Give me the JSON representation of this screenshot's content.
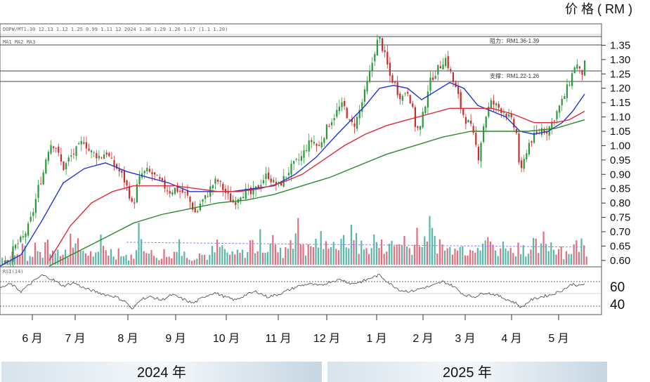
{
  "chart_data": {
    "type": "candlestick",
    "y_axis_label": "价 格 ( RM )",
    "price_ticks": [
      "1.35",
      "1.30",
      "1.25",
      "1.20",
      "1.15",
      "1.10",
      "1.05",
      "1.00",
      "0.95",
      "0.90",
      "0.85",
      "0.80",
      "0.75",
      "0.70",
      "0.65",
      "0.60"
    ],
    "ylim": [
      0.585,
      1.395
    ],
    "rsi_ticks": [
      "60",
      "40"
    ],
    "rsi_lim": [
      35,
      75
    ],
    "months": [
      "6 月",
      "7 月",
      "8 月",
      "9 月",
      "10 月",
      "11 月",
      "12 月",
      "1 月",
      "2 月",
      "3 月",
      "4 月",
      "5 月"
    ],
    "years": [
      "2024 年",
      "2025 年"
    ],
    "resistance": {
      "label": "阻力：RM1.36-1.39",
      "levels": [
        1.36,
        1.39
      ]
    },
    "support": {
      "label": "支撑：RM1.22-1.26",
      "levels": [
        1.22,
        1.26
      ]
    },
    "price_path": [
      [
        0,
        0.58
      ],
      [
        6,
        0.61
      ],
      [
        12,
        0.6
      ],
      [
        18,
        0.64
      ],
      [
        25,
        0.66
      ],
      [
        32,
        0.68
      ],
      [
        40,
        0.72
      ],
      [
        47,
        0.78
      ],
      [
        54,
        0.86
      ],
      [
        60,
        0.9
      ],
      [
        66,
        0.98
      ],
      [
        72,
        1.01
      ],
      [
        78,
        1.0
      ],
      [
        84,
        0.95
      ],
      [
        90,
        0.92
      ],
      [
        96,
        0.95
      ],
      [
        102,
        0.97
      ],
      [
        110,
        0.99
      ],
      [
        118,
        1.02
      ],
      [
        126,
        0.98
      ],
      [
        134,
        0.97
      ],
      [
        142,
        0.96
      ],
      [
        150,
        0.98
      ],
      [
        158,
        0.94
      ],
      [
        166,
        0.92
      ],
      [
        174,
        0.89
      ],
      [
        182,
        0.84
      ],
      [
        188,
        0.78
      ],
      [
        194,
        0.86
      ],
      [
        200,
        0.9
      ],
      [
        208,
        0.91
      ],
      [
        216,
        0.9
      ],
      [
        224,
        0.88
      ],
      [
        232,
        0.86
      ],
      [
        240,
        0.84
      ],
      [
        248,
        0.85
      ],
      [
        256,
        0.84
      ],
      [
        264,
        0.83
      ],
      [
        272,
        0.79
      ],
      [
        278,
        0.76
      ],
      [
        284,
        0.8
      ],
      [
        292,
        0.82
      ],
      [
        300,
        0.86
      ],
      [
        308,
        0.88
      ],
      [
        316,
        0.85
      ],
      [
        324,
        0.82
      ],
      [
        332,
        0.8
      ],
      [
        340,
        0.83
      ],
      [
        348,
        0.84
      ],
      [
        356,
        0.83
      ],
      [
        364,
        0.85
      ],
      [
        372,
        0.88
      ],
      [
        380,
        0.9
      ],
      [
        388,
        0.87
      ],
      [
        396,
        0.86
      ],
      [
        404,
        0.89
      ],
      [
        412,
        0.92
      ],
      [
        420,
        0.94
      ],
      [
        428,
        0.96
      ],
      [
        436,
        1.0
      ],
      [
        444,
        1.02
      ],
      [
        452,
        0.99
      ],
      [
        460,
        1.04
      ],
      [
        468,
        1.08
      ],
      [
        476,
        1.11
      ],
      [
        484,
        1.14
      ],
      [
        490,
        1.13
      ],
      [
        496,
        1.08
      ],
      [
        502,
        1.07
      ],
      [
        508,
        1.1
      ],
      [
        514,
        1.15
      ],
      [
        520,
        1.2
      ],
      [
        526,
        1.26
      ],
      [
        532,
        1.33
      ],
      [
        538,
        1.38
      ],
      [
        542,
        1.35
      ],
      [
        548,
        1.3
      ],
      [
        554,
        1.24
      ],
      [
        560,
        1.22
      ],
      [
        566,
        1.18
      ],
      [
        572,
        1.17
      ],
      [
        578,
        1.2
      ],
      [
        584,
        1.15
      ],
      [
        590,
        1.07
      ],
      [
        596,
        1.05
      ],
      [
        602,
        1.12
      ],
      [
        608,
        1.2
      ],
      [
        614,
        1.24
      ],
      [
        620,
        1.26
      ],
      [
        626,
        1.28
      ],
      [
        632,
        1.31
      ],
      [
        638,
        1.27
      ],
      [
        644,
        1.22
      ],
      [
        650,
        1.18
      ],
      [
        656,
        1.12
      ],
      [
        662,
        1.09
      ],
      [
        668,
        1.07
      ],
      [
        674,
        1.02
      ],
      [
        680,
        0.96
      ],
      [
        686,
        1.06
      ],
      [
        692,
        1.12
      ],
      [
        698,
        1.15
      ],
      [
        704,
        1.14
      ],
      [
        710,
        1.13
      ],
      [
        716,
        1.12
      ],
      [
        722,
        1.1
      ],
      [
        728,
        1.08
      ],
      [
        734,
        1.04
      ],
      [
        738,
        0.93
      ],
      [
        742,
        0.9
      ],
      [
        746,
        0.97
      ],
      [
        752,
        1.01
      ],
      [
        758,
        1.03
      ],
      [
        764,
        1.04
      ],
      [
        770,
        1.06
      ],
      [
        776,
        1.05
      ],
      [
        782,
        1.07
      ],
      [
        788,
        1.1
      ],
      [
        794,
        1.13
      ],
      [
        800,
        1.16
      ],
      [
        806,
        1.2
      ],
      [
        812,
        1.24
      ],
      [
        818,
        1.29
      ],
      [
        822,
        1.27
      ],
      [
        826,
        1.24
      ],
      [
        830,
        1.28
      ],
      [
        834,
        1.29
      ]
    ],
    "ma_series": [
      {
        "color": "#1f35d6",
        "points": [
          [
            0,
            0.58
          ],
          [
            30,
            0.62
          ],
          [
            60,
            0.74
          ],
          [
            90,
            0.87
          ],
          [
            120,
            0.92
          ],
          [
            150,
            0.94
          ],
          [
            180,
            0.91
          ],
          [
            210,
            0.89
          ],
          [
            240,
            0.87
          ],
          [
            270,
            0.84
          ],
          [
            300,
            0.84
          ],
          [
            330,
            0.84
          ],
          [
            360,
            0.85
          ],
          [
            390,
            0.86
          ],
          [
            420,
            0.9
          ],
          [
            450,
            0.96
          ],
          [
            480,
            1.04
          ],
          [
            500,
            1.09
          ],
          [
            520,
            1.14
          ],
          [
            540,
            1.2
          ],
          [
            560,
            1.21
          ],
          [
            580,
            1.2
          ],
          [
            600,
            1.16
          ],
          [
            620,
            1.19
          ],
          [
            640,
            1.22
          ],
          [
            660,
            1.2
          ],
          [
            680,
            1.14
          ],
          [
            700,
            1.12
          ],
          [
            720,
            1.1
          ],
          [
            740,
            1.05
          ],
          [
            760,
            1.04
          ],
          [
            780,
            1.05
          ],
          [
            800,
            1.08
          ],
          [
            815,
            1.12
          ],
          [
            832,
            1.18
          ]
        ]
      },
      {
        "color": "#e0293a",
        "points": [
          [
            70,
            0.6
          ],
          [
            100,
            0.72
          ],
          [
            130,
            0.8
          ],
          [
            160,
            0.84
          ],
          [
            190,
            0.86
          ],
          [
            220,
            0.86
          ],
          [
            250,
            0.86
          ],
          [
            280,
            0.85
          ],
          [
            310,
            0.84
          ],
          [
            340,
            0.84
          ],
          [
            370,
            0.85
          ],
          [
            400,
            0.87
          ],
          [
            430,
            0.9
          ],
          [
            460,
            0.95
          ],
          [
            490,
            1.0
          ],
          [
            520,
            1.04
          ],
          [
            550,
            1.07
          ],
          [
            580,
            1.09
          ],
          [
            610,
            1.11
          ],
          [
            640,
            1.13
          ],
          [
            670,
            1.13
          ],
          [
            700,
            1.13
          ],
          [
            730,
            1.11
          ],
          [
            760,
            1.08
          ],
          [
            790,
            1.08
          ],
          [
            810,
            1.09
          ],
          [
            832,
            1.12
          ]
        ]
      },
      {
        "color": "#2a8a2a",
        "points": [
          [
            70,
            0.58
          ],
          [
            110,
            0.63
          ],
          [
            150,
            0.68
          ],
          [
            190,
            0.73
          ],
          [
            230,
            0.76
          ],
          [
            270,
            0.78
          ],
          [
            310,
            0.8
          ],
          [
            350,
            0.81
          ],
          [
            390,
            0.83
          ],
          [
            430,
            0.86
          ],
          [
            470,
            0.89
          ],
          [
            510,
            0.93
          ],
          [
            550,
            0.97
          ],
          [
            590,
            1.0
          ],
          [
            630,
            1.03
          ],
          [
            670,
            1.05
          ],
          [
            710,
            1.05
          ],
          [
            750,
            1.05
          ],
          [
            790,
            1.06
          ],
          [
            832,
            1.09
          ]
        ]
      }
    ],
    "volume_profile": [
      12,
      8,
      20,
      15,
      30,
      10,
      22,
      25,
      18,
      40,
      28,
      35,
      15,
      20,
      55,
      30,
      25,
      20,
      18,
      15,
      40,
      30,
      22,
      18,
      25,
      15,
      12,
      20,
      60,
      35,
      18,
      15,
      14,
      20,
      12,
      22,
      45,
      18,
      15,
      12,
      20,
      16,
      14,
      22,
      30,
      25,
      18,
      15,
      20,
      18,
      22,
      35,
      28,
      40,
      30,
      45,
      25,
      20,
      30,
      50,
      55,
      38,
      25,
      30,
      35,
      40,
      30,
      48,
      35,
      30,
      38,
      45,
      50,
      30,
      25,
      32,
      40,
      30,
      25,
      42,
      30,
      35,
      45,
      28,
      35,
      55,
      32,
      60,
      45,
      38,
      30,
      25,
      35,
      45,
      30,
      28,
      40,
      35,
      25,
      48,
      30,
      25,
      30,
      40,
      22,
      30,
      35,
      28,
      20,
      30,
      25,
      40,
      35,
      30,
      30,
      20,
      25,
      30,
      35,
      28
    ],
    "rsi_path": [
      [
        0,
        58
      ],
      [
        15,
        62
      ],
      [
        30,
        55
      ],
      [
        45,
        63
      ],
      [
        60,
        70
      ],
      [
        75,
        66
      ],
      [
        90,
        60
      ],
      [
        105,
        63
      ],
      [
        120,
        58
      ],
      [
        135,
        55
      ],
      [
        150,
        52
      ],
      [
        165,
        50
      ],
      [
        180,
        45
      ],
      [
        188,
        38
      ],
      [
        200,
        48
      ],
      [
        215,
        50
      ],
      [
        230,
        47
      ],
      [
        245,
        52
      ],
      [
        260,
        48
      ],
      [
        275,
        44
      ],
      [
        290,
        50
      ],
      [
        305,
        54
      ],
      [
        320,
        50
      ],
      [
        335,
        47
      ],
      [
        350,
        52
      ],
      [
        365,
        55
      ],
      [
        380,
        50
      ],
      [
        395,
        52
      ],
      [
        410,
        56
      ],
      [
        425,
        60
      ],
      [
        440,
        62
      ],
      [
        455,
        60
      ],
      [
        470,
        64
      ],
      [
        485,
        66
      ],
      [
        500,
        62
      ],
      [
        515,
        64
      ],
      [
        530,
        68
      ],
      [
        540,
        70
      ],
      [
        555,
        62
      ],
      [
        570,
        56
      ],
      [
        585,
        55
      ],
      [
        600,
        58
      ],
      [
        615,
        60
      ],
      [
        630,
        64
      ],
      [
        645,
        60
      ],
      [
        660,
        52
      ],
      [
        675,
        50
      ],
      [
        690,
        54
      ],
      [
        705,
        52
      ],
      [
        720,
        48
      ],
      [
        735,
        44
      ],
      [
        742,
        40
      ],
      [
        755,
        47
      ],
      [
        770,
        50
      ],
      [
        785,
        52
      ],
      [
        800,
        56
      ],
      [
        815,
        62
      ],
      [
        825,
        60
      ],
      [
        832,
        62
      ]
    ]
  }
}
